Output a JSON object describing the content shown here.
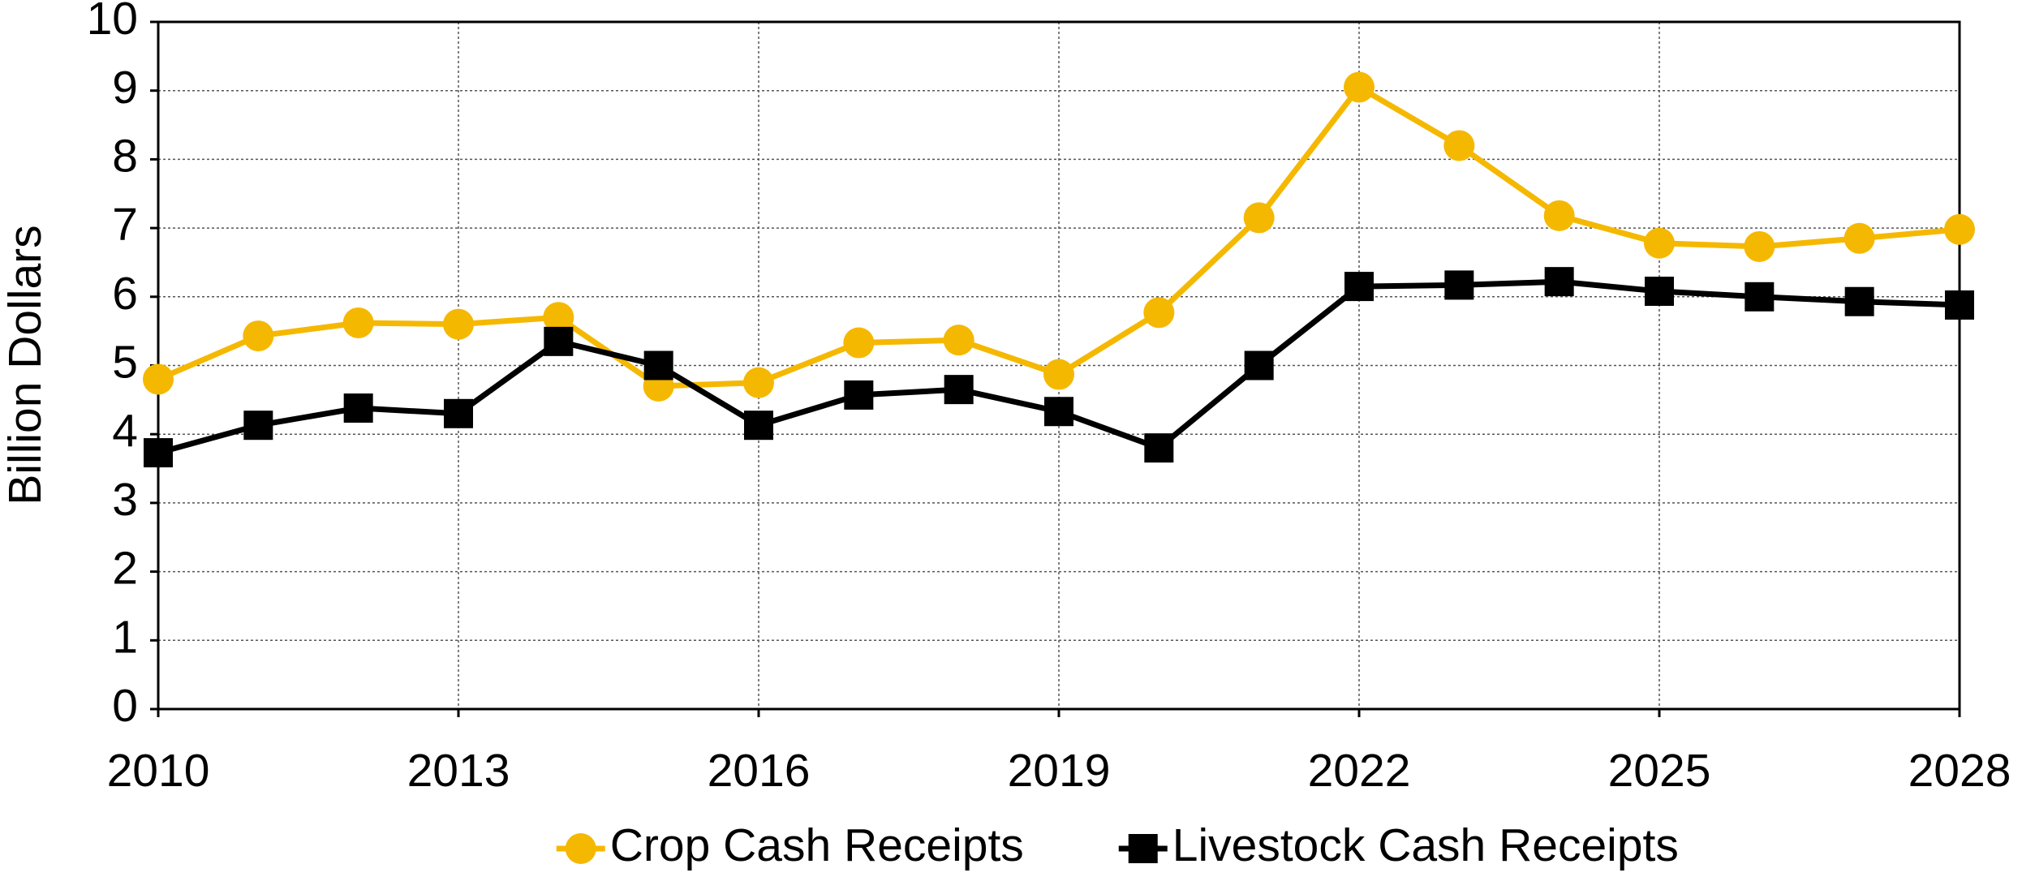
{
  "chart_data": {
    "type": "line",
    "y_label": "Billion Dollars",
    "x": [
      2010,
      2011,
      2012,
      2013,
      2014,
      2015,
      2016,
      2017,
      2018,
      2019,
      2020,
      2021,
      2022,
      2023,
      2024,
      2025,
      2026,
      2027,
      2028
    ],
    "series": [
      {
        "name": "Crop Cash Receipts",
        "color": "#f5b800",
        "marker": "circle",
        "values": [
          4.8,
          5.43,
          5.62,
          5.6,
          5.7,
          4.7,
          4.75,
          5.33,
          5.37,
          4.87,
          5.77,
          7.15,
          9.05,
          8.2,
          7.18,
          6.78,
          6.73,
          6.85,
          6.98
        ]
      },
      {
        "name": "Livestock Cash Receipts",
        "color": "#000000",
        "marker": "square",
        "values": [
          3.73,
          4.13,
          4.38,
          4.3,
          5.35,
          5.0,
          4.13,
          4.57,
          4.65,
          4.33,
          3.8,
          5.0,
          6.15,
          6.17,
          6.22,
          6.08,
          6.0,
          5.93,
          5.88
        ]
      }
    ],
    "xlim": [
      2010,
      2028
    ],
    "xticks": [
      2010,
      2013,
      2016,
      2019,
      2022,
      2025,
      2028
    ],
    "ylim": [
      0,
      10
    ],
    "yticks": [
      0,
      1,
      2,
      3,
      4,
      5,
      6,
      7,
      8,
      9,
      10
    ],
    "grid": true,
    "legend": "bottom"
  }
}
